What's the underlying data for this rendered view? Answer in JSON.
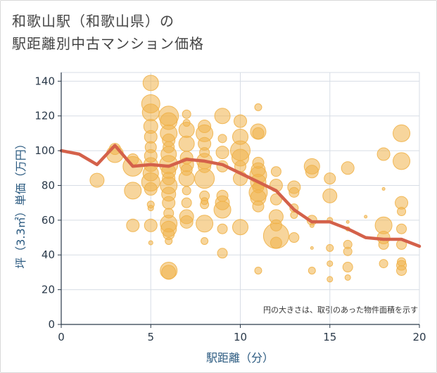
{
  "chart_data": {
    "type": "scatter",
    "title": "和歌山駅（和歌山県）の\n駅距離別中古マンション価格",
    "xlabel": "駅距離（分）",
    "ylabel": "坪（3.3㎡）単価（万円）",
    "note": "円の大きさは、取引のあった物件面積を示す",
    "xlim": [
      0,
      20
    ],
    "ylim": [
      0,
      145
    ],
    "xticks": [
      0,
      5,
      10,
      15,
      20
    ],
    "yticks": [
      0,
      20,
      40,
      60,
      80,
      100,
      120,
      140
    ],
    "grid": true,
    "colors": {
      "bubble": "#f0b24a",
      "line": "#d4614a",
      "grid": "#d7dde5",
      "axis": "#2b3a4a"
    },
    "trend_line": {
      "x": [
        0,
        1,
        2,
        3,
        4,
        5,
        6,
        7,
        8,
        9,
        10,
        11,
        12,
        13,
        14,
        15,
        16,
        17,
        18,
        19,
        20
      ],
      "y": [
        100,
        98,
        92,
        103,
        91,
        92,
        91,
        95,
        94,
        92,
        87,
        82,
        77,
        66,
        59,
        59,
        55,
        50,
        49,
        49,
        45
      ]
    },
    "bubbles": [
      {
        "x": 2,
        "y": 83,
        "s": 10
      },
      {
        "x": 3,
        "y": 98,
        "s": 12
      },
      {
        "x": 3,
        "y": 101,
        "s": 8
      },
      {
        "x": 4,
        "y": 77,
        "s": 12
      },
      {
        "x": 4,
        "y": 91,
        "s": 14
      },
      {
        "x": 4,
        "y": 57,
        "s": 9
      },
      {
        "x": 4,
        "y": 95,
        "s": 8
      },
      {
        "x": 5,
        "y": 139,
        "s": 11
      },
      {
        "x": 5,
        "y": 127,
        "s": 13
      },
      {
        "x": 5,
        "y": 122,
        "s": 12
      },
      {
        "x": 5,
        "y": 114,
        "s": 10
      },
      {
        "x": 5,
        "y": 108,
        "s": 9
      },
      {
        "x": 5,
        "y": 102,
        "s": 8
      },
      {
        "x": 5,
        "y": 97,
        "s": 9
      },
      {
        "x": 5,
        "y": 92,
        "s": 10
      },
      {
        "x": 5,
        "y": 87,
        "s": 11
      },
      {
        "x": 5,
        "y": 82,
        "s": 13
      },
      {
        "x": 5,
        "y": 78,
        "s": 9
      },
      {
        "x": 5,
        "y": 69,
        "s": 5
      },
      {
        "x": 5,
        "y": 67,
        "s": 4
      },
      {
        "x": 5,
        "y": 57,
        "s": 9
      },
      {
        "x": 5,
        "y": 47,
        "s": 3
      },
      {
        "x": 6,
        "y": 120,
        "s": 14
      },
      {
        "x": 6,
        "y": 117,
        "s": 12
      },
      {
        "x": 6,
        "y": 110,
        "s": 12
      },
      {
        "x": 6,
        "y": 106,
        "s": 9
      },
      {
        "x": 6,
        "y": 102,
        "s": 8
      },
      {
        "x": 6,
        "y": 98,
        "s": 11
      },
      {
        "x": 6,
        "y": 92,
        "s": 13
      },
      {
        "x": 6,
        "y": 88,
        "s": 10
      },
      {
        "x": 6,
        "y": 84,
        "s": 9
      },
      {
        "x": 6,
        "y": 80,
        "s": 12
      },
      {
        "x": 6,
        "y": 75,
        "s": 10
      },
      {
        "x": 6,
        "y": 70,
        "s": 9
      },
      {
        "x": 6,
        "y": 64,
        "s": 7
      },
      {
        "x": 6,
        "y": 58,
        "s": 12
      },
      {
        "x": 6,
        "y": 55,
        "s": 11
      },
      {
        "x": 6,
        "y": 52,
        "s": 8
      },
      {
        "x": 6,
        "y": 48,
        "s": 5
      },
      {
        "x": 6,
        "y": 31,
        "s": 12
      },
      {
        "x": 6,
        "y": 30,
        "s": 10
      },
      {
        "x": 7,
        "y": 121,
        "s": 6
      },
      {
        "x": 7,
        "y": 116,
        "s": 5
      },
      {
        "x": 7,
        "y": 112,
        "s": 11
      },
      {
        "x": 7,
        "y": 104,
        "s": 11
      },
      {
        "x": 7,
        "y": 96,
        "s": 9
      },
      {
        "x": 7,
        "y": 92,
        "s": 10
      },
      {
        "x": 7,
        "y": 89,
        "s": 8
      },
      {
        "x": 7,
        "y": 84,
        "s": 11
      },
      {
        "x": 7,
        "y": 77,
        "s": 6
      },
      {
        "x": 7,
        "y": 70,
        "s": 7
      },
      {
        "x": 7,
        "y": 62,
        "s": 10
      },
      {
        "x": 7,
        "y": 59,
        "s": 9
      },
      {
        "x": 8,
        "y": 114,
        "s": 9
      },
      {
        "x": 8,
        "y": 110,
        "s": 12
      },
      {
        "x": 8,
        "y": 104,
        "s": 9
      },
      {
        "x": 8,
        "y": 99,
        "s": 7
      },
      {
        "x": 8,
        "y": 94,
        "s": 11
      },
      {
        "x": 8,
        "y": 91,
        "s": 9
      },
      {
        "x": 8,
        "y": 84,
        "s": 14
      },
      {
        "x": 8,
        "y": 74,
        "s": 7
      },
      {
        "x": 8,
        "y": 71,
        "s": 5
      },
      {
        "x": 8,
        "y": 69,
        "s": 6
      },
      {
        "x": 8,
        "y": 58,
        "s": 12
      },
      {
        "x": 8,
        "y": 48,
        "s": 5
      },
      {
        "x": 9,
        "y": 120,
        "s": 11
      },
      {
        "x": 9,
        "y": 107,
        "s": 6
      },
      {
        "x": 9,
        "y": 99,
        "s": 9
      },
      {
        "x": 9,
        "y": 91,
        "s": 8
      },
      {
        "x": 9,
        "y": 74,
        "s": 8
      },
      {
        "x": 9,
        "y": 70,
        "s": 10
      },
      {
        "x": 9,
        "y": 66,
        "s": 12
      },
      {
        "x": 9,
        "y": 55,
        "s": 7
      },
      {
        "x": 9,
        "y": 41,
        "s": 7
      },
      {
        "x": 10,
        "y": 117,
        "s": 9
      },
      {
        "x": 10,
        "y": 108,
        "s": 11
      },
      {
        "x": 10,
        "y": 100,
        "s": 14
      },
      {
        "x": 10,
        "y": 96,
        "s": 12
      },
      {
        "x": 10,
        "y": 91,
        "s": 8
      },
      {
        "x": 10,
        "y": 84,
        "s": 10
      },
      {
        "x": 10,
        "y": 56,
        "s": 11
      },
      {
        "x": 11,
        "y": 125,
        "s": 5
      },
      {
        "x": 11,
        "y": 111,
        "s": 11
      },
      {
        "x": 11,
        "y": 110,
        "s": 8
      },
      {
        "x": 11,
        "y": 93,
        "s": 8
      },
      {
        "x": 11,
        "y": 89,
        "s": 10
      },
      {
        "x": 11,
        "y": 86,
        "s": 12
      },
      {
        "x": 11,
        "y": 82,
        "s": 11
      },
      {
        "x": 11,
        "y": 79,
        "s": 8
      },
      {
        "x": 11,
        "y": 76,
        "s": 13
      },
      {
        "x": 11,
        "y": 73,
        "s": 11
      },
      {
        "x": 11,
        "y": 68,
        "s": 8
      },
      {
        "x": 11,
        "y": 31,
        "s": 5
      },
      {
        "x": 12,
        "y": 88,
        "s": 7
      },
      {
        "x": 12,
        "y": 80,
        "s": 9
      },
      {
        "x": 12,
        "y": 72,
        "s": 8
      },
      {
        "x": 12,
        "y": 62,
        "s": 10
      },
      {
        "x": 12,
        "y": 57,
        "s": 8
      },
      {
        "x": 12,
        "y": 51,
        "s": 18
      },
      {
        "x": 12,
        "y": 47,
        "s": 8
      },
      {
        "x": 13,
        "y": 79,
        "s": 9
      },
      {
        "x": 13,
        "y": 76,
        "s": 7
      },
      {
        "x": 13,
        "y": 67,
        "s": 6
      },
      {
        "x": 13,
        "y": 63,
        "s": 5
      },
      {
        "x": 13,
        "y": 50,
        "s": 7
      },
      {
        "x": 14,
        "y": 91,
        "s": 11
      },
      {
        "x": 14,
        "y": 88,
        "s": 9
      },
      {
        "x": 14,
        "y": 60,
        "s": 7
      },
      {
        "x": 14,
        "y": 57,
        "s": 3
      },
      {
        "x": 14,
        "y": 44,
        "s": 2
      },
      {
        "x": 14,
        "y": 31,
        "s": 5
      },
      {
        "x": 15,
        "y": 84,
        "s": 8
      },
      {
        "x": 15,
        "y": 74,
        "s": 10
      },
      {
        "x": 15,
        "y": 60,
        "s": 4
      },
      {
        "x": 15,
        "y": 44,
        "s": 5
      },
      {
        "x": 15,
        "y": 35,
        "s": 4
      },
      {
        "x": 15,
        "y": 26,
        "s": 4
      },
      {
        "x": 16,
        "y": 90,
        "s": 9
      },
      {
        "x": 16,
        "y": 59,
        "s": 2
      },
      {
        "x": 16,
        "y": 55,
        "s": 3
      },
      {
        "x": 16,
        "y": 46,
        "s": 6
      },
      {
        "x": 16,
        "y": 42,
        "s": 6
      },
      {
        "x": 16,
        "y": 33,
        "s": 7
      },
      {
        "x": 16,
        "y": 27,
        "s": 4
      },
      {
        "x": 17,
        "y": 62,
        "s": 2
      },
      {
        "x": 18,
        "y": 98,
        "s": 9
      },
      {
        "x": 18,
        "y": 78,
        "s": 2
      },
      {
        "x": 18,
        "y": 57,
        "s": 12
      },
      {
        "x": 18,
        "y": 50,
        "s": 9
      },
      {
        "x": 18,
        "y": 46,
        "s": 7
      },
      {
        "x": 18,
        "y": 35,
        "s": 6
      },
      {
        "x": 19,
        "y": 110,
        "s": 12
      },
      {
        "x": 19,
        "y": 94,
        "s": 12
      },
      {
        "x": 19,
        "y": 70,
        "s": 9
      },
      {
        "x": 19,
        "y": 65,
        "s": 6
      },
      {
        "x": 19,
        "y": 55,
        "s": 7
      },
      {
        "x": 19,
        "y": 46,
        "s": 7
      },
      {
        "x": 19,
        "y": 36,
        "s": 6
      },
      {
        "x": 19,
        "y": 34,
        "s": 7
      },
      {
        "x": 19,
        "y": 31,
        "s": 7
      }
    ]
  }
}
